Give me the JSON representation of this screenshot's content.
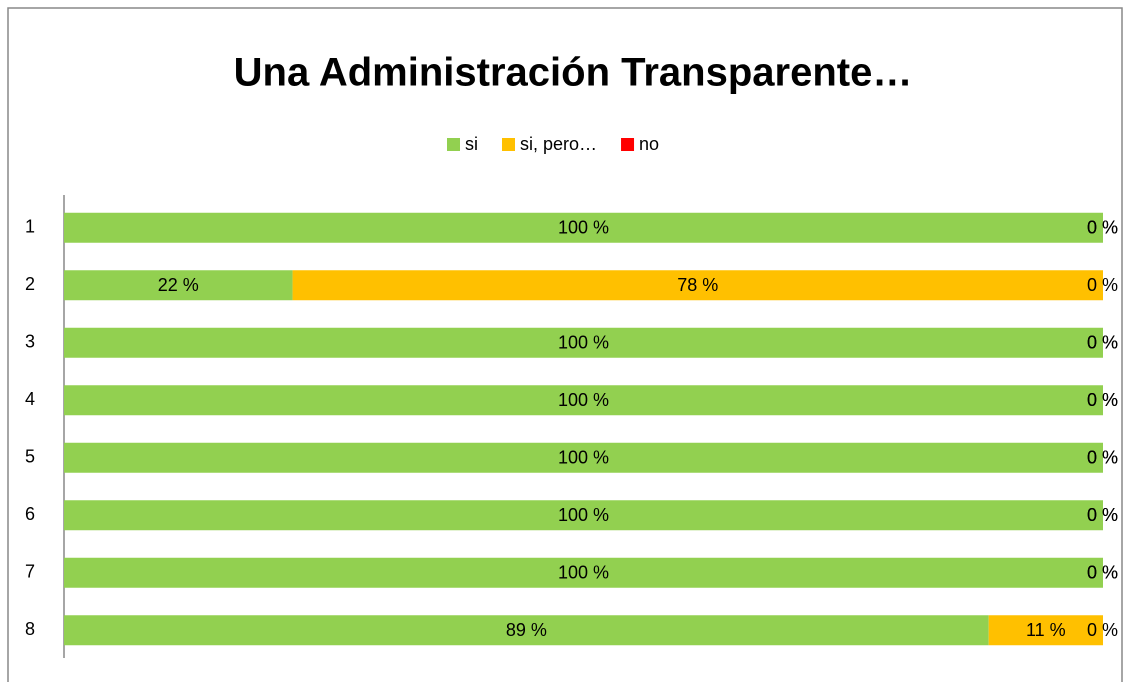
{
  "chart_data": {
    "type": "stacked_bar_horizontal",
    "title": "Una Administración Transparente…",
    "categories": [
      "1",
      "2",
      "3",
      "4",
      "5",
      "6",
      "7",
      "8"
    ],
    "series": [
      {
        "name": "si",
        "color": "#92d050",
        "values": [
          100,
          22,
          100,
          100,
          100,
          100,
          100,
          89
        ],
        "value_labels": [
          "100 %",
          "22 %",
          "100 %",
          "100 %",
          "100 %",
          "100 %",
          "100 %",
          "89 %"
        ]
      },
      {
        "name": "si, pero…",
        "color": "#ffc000",
        "values": [
          0,
          78,
          0,
          0,
          0,
          0,
          0,
          11
        ],
        "value_labels": [
          "0 %",
          "78 %",
          "0 %",
          "0 %",
          "0 %",
          "0 %",
          "0 %",
          "11 %"
        ]
      },
      {
        "name": "no",
        "color": "#ff0000",
        "values": [
          0,
          0,
          0,
          0,
          0,
          0,
          0,
          0
        ],
        "value_labels": [
          "0 %",
          "0 %",
          "0 %",
          "0 %",
          "0 %",
          "0 %",
          "0 %",
          "0 %"
        ]
      }
    ],
    "legend": "top"
  }
}
